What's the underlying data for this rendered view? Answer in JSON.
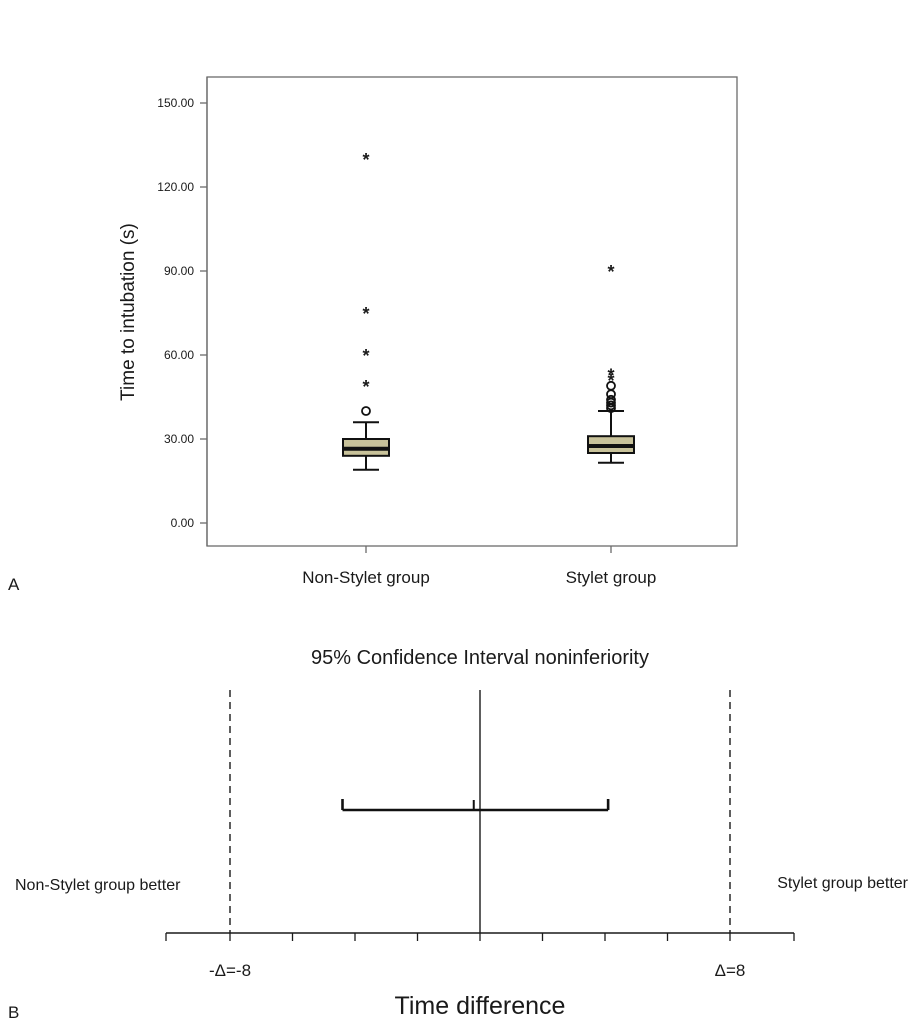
{
  "chart_data": [
    {
      "panel": "A",
      "type": "box",
      "ylabel": "Time to intubation (s)",
      "ylim": [
        -9,
        160
      ],
      "yticks": [
        "0.00",
        "30.00",
        "60.00",
        "90.00",
        "120.00",
        "150.00"
      ],
      "ytick_values": [
        0,
        30,
        60,
        90,
        120,
        150
      ],
      "categories": [
        "Non-Stylet group",
        "Stylet group"
      ],
      "grid": false,
      "boxes": [
        {
          "name": "Non-Stylet group",
          "min": 19,
          "q1": 24,
          "median": 26.5,
          "q3": 30,
          "max": 36,
          "outliers_circle": [
            40
          ],
          "outliers_star": [
            49,
            60,
            75,
            130
          ]
        },
        {
          "name": "Stylet group",
          "min": 21.5,
          "q1": 25,
          "median": 27.5,
          "q3": 31,
          "max": 40,
          "outliers_circle": [
            41,
            42,
            43,
            44,
            46,
            49
          ],
          "outliers_star": [
            51,
            53,
            90
          ]
        }
      ],
      "box_fill": "#c8c29a"
    },
    {
      "panel": "B",
      "type": "interval",
      "title": "95% Confidence Interval noninferiority",
      "xlabel": "Time difference",
      "xlim": [
        -10,
        10
      ],
      "x_ticks": [
        -8,
        -6,
        -4,
        -2,
        0,
        2,
        4,
        6,
        8
      ],
      "zero_line": 0,
      "margin_labels": [
        {
          "value": -8,
          "text": "-Δ=-8"
        },
        {
          "value": 8,
          "text": "Δ=8"
        }
      ],
      "interval": {
        "lower": -4.4,
        "estimate": -0.2,
        "upper": 4.1
      },
      "left_annotation": "Non-Stylet group better",
      "right_annotation": "Stylet group better"
    }
  ]
}
